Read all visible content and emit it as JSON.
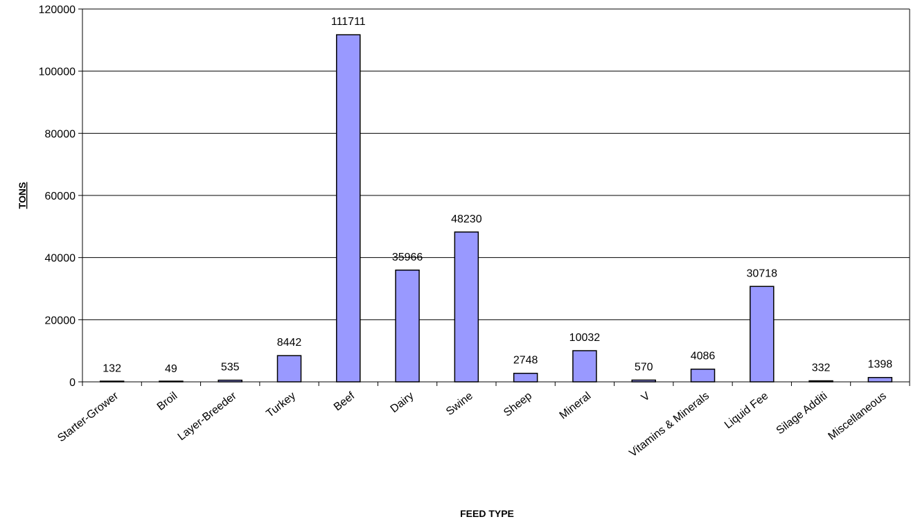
{
  "chart_data": {
    "type": "bar",
    "title": "",
    "xlabel": "FEED TYPE",
    "ylabel": "TONS",
    "ylim": [
      0,
      120000
    ],
    "yticks": [
      0,
      20000,
      40000,
      60000,
      80000,
      100000,
      120000
    ],
    "grid": true,
    "legend": "none",
    "bar_color": "#9999ff",
    "bar_stroke": "#000000",
    "categories": [
      "Starter-Grower",
      "Broil",
      "Layer-Breeder",
      "Turkey",
      "Beef",
      "Dairy",
      "Swine",
      "Sheep",
      "Mineral",
      "V",
      "Vitamins & Minerals",
      "Liquid Fee",
      "Silage Additi",
      "Miscellaneous"
    ],
    "values": [
      132,
      49,
      535,
      8442,
      111711,
      35966,
      48230,
      2748,
      10032,
      570,
      4086,
      30718,
      332,
      1398
    ],
    "data_labels": [
      "132",
      "49",
      "535",
      "8442",
      "111711",
      "35966",
      "48230",
      "2748",
      "10032",
      "570",
      "4086",
      "30718",
      "332",
      "1398"
    ]
  }
}
